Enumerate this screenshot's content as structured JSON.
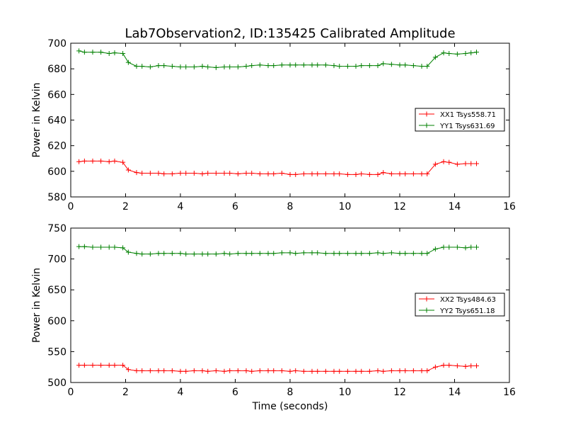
{
  "figure": {
    "title": "Lab7Observation2, ID:135425 Calibrated Amplitude",
    "xlabel": "Time (seconds)"
  },
  "chart_data": [
    {
      "type": "line",
      "ylabel": "Power in Kelvin",
      "xlim": [
        0,
        16
      ],
      "ylim": [
        580,
        700
      ],
      "xticks": [
        0,
        2,
        4,
        6,
        8,
        10,
        12,
        14,
        16
      ],
      "yticks": [
        580,
        600,
        620,
        640,
        660,
        680,
        700
      ],
      "grid": false,
      "legend_position": "center-right",
      "x": [
        0.3,
        0.5,
        0.8,
        1.1,
        1.4,
        1.6,
        1.9,
        2.1,
        2.4,
        2.6,
        2.9,
        3.2,
        3.4,
        3.7,
        4.0,
        4.2,
        4.5,
        4.8,
        5.0,
        5.3,
        5.6,
        5.8,
        6.1,
        6.4,
        6.6,
        6.9,
        7.2,
        7.4,
        7.7,
        8.0,
        8.2,
        8.5,
        8.8,
        9.0,
        9.3,
        9.6,
        9.8,
        10.1,
        10.4,
        10.6,
        10.9,
        11.2,
        11.4,
        11.7,
        12.0,
        12.2,
        12.5,
        12.8,
        13.0,
        13.3,
        13.6,
        13.8,
        14.1,
        14.4,
        14.6,
        14.8
      ],
      "series": [
        {
          "name": "XX1 Tsys558.71",
          "color": "#ff0000",
          "values": [
            607.5,
            608,
            608,
            608,
            607.5,
            608,
            607,
            601,
            599,
            598.5,
            598.5,
            598.5,
            598,
            598,
            598.5,
            598.5,
            598.5,
            598,
            598.5,
            598.5,
            598.5,
            598.5,
            598,
            598.5,
            598.5,
            598,
            598,
            598,
            598.5,
            597.5,
            597.5,
            598,
            598,
            598,
            598,
            598,
            598,
            597.5,
            597.5,
            598,
            597.5,
            597.5,
            599,
            598,
            598,
            598,
            598,
            598,
            598,
            605.5,
            607.5,
            607,
            605.5,
            606,
            606,
            606
          ]
        },
        {
          "name": "YY1 Tsys631.69",
          "color": "#008000",
          "values": [
            694,
            693,
            693,
            693,
            692,
            692.5,
            692,
            685,
            682,
            682,
            681.5,
            682.5,
            682.5,
            682,
            681.5,
            681.5,
            681.5,
            682,
            681.5,
            681,
            681.5,
            681.5,
            681.5,
            682,
            682.5,
            683,
            682.5,
            682.5,
            683,
            683,
            683,
            683,
            683,
            683,
            683,
            682.5,
            682,
            682,
            682,
            682.5,
            682.5,
            682.5,
            684,
            683.5,
            683,
            683,
            682.5,
            682,
            682,
            689,
            692.5,
            692,
            691.5,
            692,
            692.5,
            693
          ]
        }
      ]
    },
    {
      "type": "line",
      "ylabel": "Power in Kelvin",
      "xlabel": "Time (seconds)",
      "xlim": [
        0,
        16
      ],
      "ylim": [
        500,
        750
      ],
      "xticks": [
        0,
        2,
        4,
        6,
        8,
        10,
        12,
        14,
        16
      ],
      "yticks": [
        500,
        550,
        600,
        650,
        700,
        750
      ],
      "grid": false,
      "legend_position": "center-right",
      "x": [
        0.3,
        0.5,
        0.8,
        1.1,
        1.4,
        1.6,
        1.9,
        2.1,
        2.4,
        2.6,
        2.9,
        3.2,
        3.4,
        3.7,
        4.0,
        4.2,
        4.5,
        4.8,
        5.0,
        5.3,
        5.6,
        5.8,
        6.1,
        6.4,
        6.6,
        6.9,
        7.2,
        7.4,
        7.7,
        8.0,
        8.2,
        8.5,
        8.8,
        9.0,
        9.3,
        9.6,
        9.8,
        10.1,
        10.4,
        10.6,
        10.9,
        11.2,
        11.4,
        11.7,
        12.0,
        12.2,
        12.5,
        12.8,
        13.0,
        13.3,
        13.6,
        13.8,
        14.1,
        14.4,
        14.6,
        14.8
      ],
      "series": [
        {
          "name": "XX2 Tsys484.63",
          "color": "#ff0000",
          "values": [
            528,
            528,
            528,
            528,
            528,
            528,
            528,
            521,
            519,
            519,
            519,
            519,
            519,
            519,
            518,
            518,
            519,
            519,
            518,
            519,
            518,
            519,
            519,
            519,
            518,
            519,
            519,
            519,
            519,
            518,
            519,
            518,
            518,
            518,
            518,
            518,
            518,
            518,
            518,
            518,
            518,
            519,
            518,
            519,
            519,
            519,
            519,
            519,
            519,
            525,
            528,
            528,
            527,
            526,
            527,
            527
          ]
        },
        {
          "name": "YY2 Tsys651.18",
          "color": "#008000",
          "values": [
            720,
            720,
            719,
            719,
            719,
            719,
            718,
            711,
            709,
            708,
            708,
            709,
            709,
            709,
            709,
            708,
            708,
            708,
            708,
            708,
            709,
            708,
            709,
            709,
            709,
            709,
            709,
            709,
            710,
            710,
            709,
            710,
            710,
            710,
            709,
            709,
            709,
            709,
            709,
            709,
            709,
            710,
            709,
            710,
            709,
            709,
            709,
            709,
            709,
            716,
            719,
            719,
            719,
            718,
            719,
            719
          ]
        }
      ]
    }
  ]
}
